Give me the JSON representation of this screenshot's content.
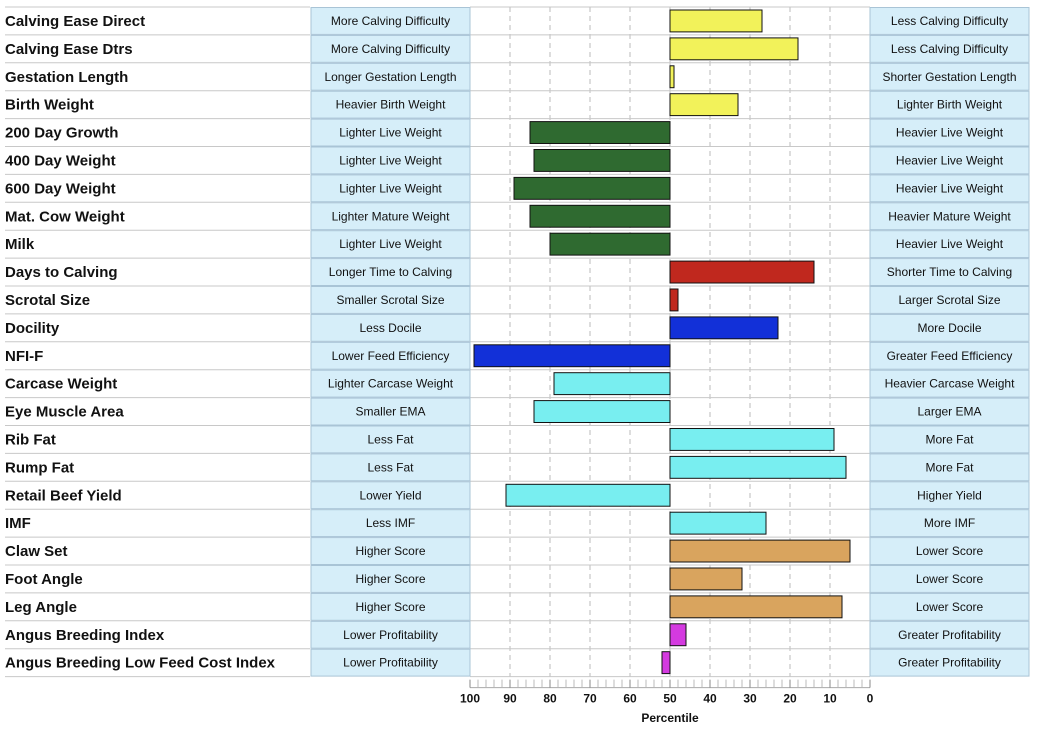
{
  "chart_data": {
    "type": "bar",
    "orientation": "horizontal",
    "xlabel": "Percentile",
    "x_axis_reversed": true,
    "xlim": [
      100,
      0
    ],
    "ticks": [
      "100",
      "90",
      "80",
      "70",
      "60",
      "50",
      "40",
      "30",
      "20",
      "10",
      "0"
    ],
    "baseline": 50,
    "grid": "vertical dashed",
    "group_colors": {
      "calving": "#f2f25a",
      "growth": "#2f6a30",
      "fertility": "#c0281e",
      "temperament": "#1230d8",
      "carcase": "#78eef0",
      "structure": "#d9a45e",
      "index": "#d43ae0"
    },
    "rows": [
      {
        "trait": "Calving Ease Direct",
        "low_desc": "More Calving Difficulty",
        "high_desc": "Less Calving Difficulty",
        "percentile": 27,
        "group": "calving"
      },
      {
        "trait": "Calving Ease Dtrs",
        "low_desc": "More Calving Difficulty",
        "high_desc": "Less Calving Difficulty",
        "percentile": 18,
        "group": "calving"
      },
      {
        "trait": "Gestation Length",
        "low_desc": "Longer Gestation Length",
        "high_desc": "Shorter Gestation Length",
        "percentile": 49,
        "group": "calving"
      },
      {
        "trait": "Birth Weight",
        "low_desc": "Heavier Birth Weight",
        "high_desc": "Lighter Birth Weight",
        "percentile": 33,
        "group": "calving"
      },
      {
        "trait": "200 Day Growth",
        "low_desc": "Lighter Live Weight",
        "high_desc": "Heavier Live Weight",
        "percentile": 85,
        "group": "growth"
      },
      {
        "trait": "400 Day Weight",
        "low_desc": "Lighter Live Weight",
        "high_desc": "Heavier Live Weight",
        "percentile": 84,
        "group": "growth"
      },
      {
        "trait": "600 Day Weight",
        "low_desc": "Lighter Live Weight",
        "high_desc": "Heavier Live Weight",
        "percentile": 89,
        "group": "growth"
      },
      {
        "trait": "Mat. Cow Weight",
        "low_desc": "Lighter Mature Weight",
        "high_desc": "Heavier Mature Weight",
        "percentile": 85,
        "group": "growth"
      },
      {
        "trait": "Milk",
        "low_desc": "Lighter Live Weight",
        "high_desc": "Heavier Live Weight",
        "percentile": 80,
        "group": "growth"
      },
      {
        "trait": "Days to Calving",
        "low_desc": "Longer Time to Calving",
        "high_desc": "Shorter Time to Calving",
        "percentile": 14,
        "group": "fertility"
      },
      {
        "trait": "Scrotal Size",
        "low_desc": "Smaller Scrotal Size",
        "high_desc": "Larger Scrotal Size",
        "percentile": 48,
        "group": "fertility"
      },
      {
        "trait": "Docility",
        "low_desc": "Less Docile",
        "high_desc": "More Docile",
        "percentile": 23,
        "group": "temperament"
      },
      {
        "trait": "NFI-F",
        "low_desc": "Lower Feed Efficiency",
        "high_desc": "Greater Feed Efficiency",
        "percentile": 99,
        "group": "temperament"
      },
      {
        "trait": "Carcase Weight",
        "low_desc": "Lighter Carcase Weight",
        "high_desc": "Heavier Carcase Weight",
        "percentile": 79,
        "group": "carcase"
      },
      {
        "trait": "Eye Muscle Area",
        "low_desc": "Smaller EMA",
        "high_desc": "Larger EMA",
        "percentile": 84,
        "group": "carcase"
      },
      {
        "trait": "Rib Fat",
        "low_desc": "Less Fat",
        "high_desc": "More Fat",
        "percentile": 9,
        "group": "carcase"
      },
      {
        "trait": "Rump Fat",
        "low_desc": "Less Fat",
        "high_desc": "More Fat",
        "percentile": 6,
        "group": "carcase"
      },
      {
        "trait": "Retail Beef Yield",
        "low_desc": "Lower Yield",
        "high_desc": "Higher Yield",
        "percentile": 91,
        "group": "carcase"
      },
      {
        "trait": "IMF",
        "low_desc": "Less IMF",
        "high_desc": "More IMF",
        "percentile": 26,
        "group": "carcase"
      },
      {
        "trait": "Claw Set",
        "low_desc": "Higher Score",
        "high_desc": "Lower Score",
        "percentile": 5,
        "group": "structure"
      },
      {
        "trait": "Foot Angle",
        "low_desc": "Higher Score",
        "high_desc": "Lower Score",
        "percentile": 32,
        "group": "structure"
      },
      {
        "trait": "Leg Angle",
        "low_desc": "Higher Score",
        "high_desc": "Lower Score",
        "percentile": 7,
        "group": "structure"
      },
      {
        "trait": "Angus Breeding Index",
        "low_desc": "Lower Profitability",
        "high_desc": "Greater Profitability",
        "percentile": 46,
        "group": "index"
      },
      {
        "trait": "Angus Breeding Low Feed Cost Index",
        "low_desc": "Lower Profitability",
        "high_desc": "Greater Profitability",
        "percentile": 52,
        "group": "index"
      }
    ]
  }
}
